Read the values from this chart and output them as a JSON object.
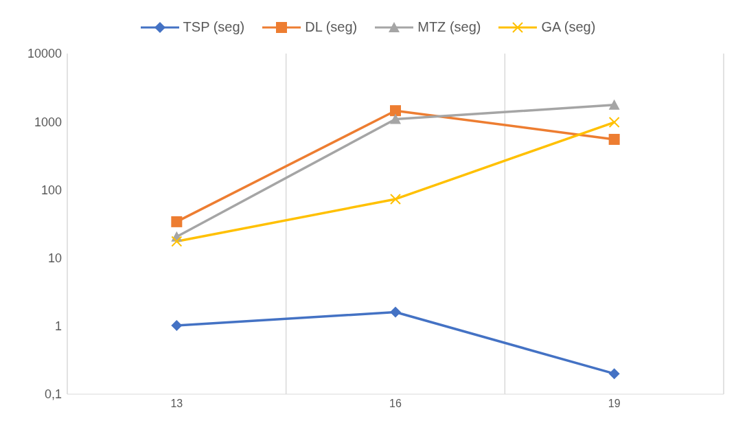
{
  "chart_data": {
    "type": "line",
    "categories": [
      "13",
      "16",
      "19"
    ],
    "series": [
      {
        "name": "TSP (seg)",
        "color": "#4472c4",
        "marker": "diamond",
        "values": [
          1.02,
          1.6,
          0.2
        ]
      },
      {
        "name": "DL (seg)",
        "color": "#ed7d31",
        "marker": "square",
        "values": [
          34,
          1450,
          550
        ]
      },
      {
        "name": "MTZ (seg)",
        "color": "#a5a5a5",
        "marker": "triangle",
        "values": [
          20.5,
          1090,
          1760
        ]
      },
      {
        "name": "GA (seg)",
        "color": "#ffc000",
        "marker": "cross",
        "values": [
          17.5,
          73,
          980
        ]
      }
    ],
    "log": "y",
    "ylim": [
      0.1,
      10000
    ],
    "yticks": [
      {
        "value": 0.1,
        "label": "0,1"
      },
      1,
      10,
      100,
      1000,
      10000
    ],
    "grid": "x",
    "legend": "top",
    "line_style": "solid"
  }
}
